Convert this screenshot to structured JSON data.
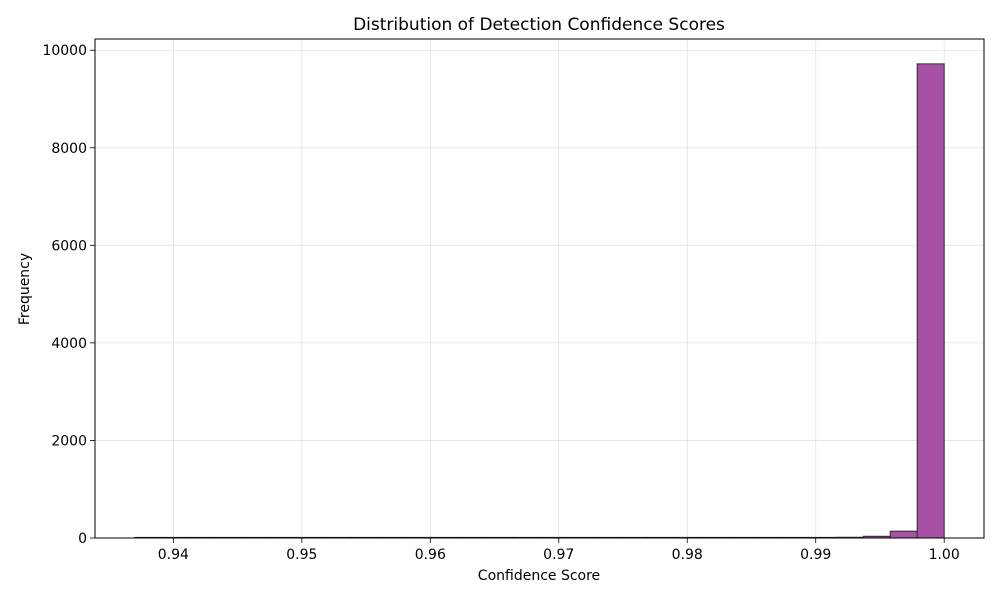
{
  "chart_data": {
    "type": "bar",
    "title": "Distribution of Detection Confidence Scores",
    "xlabel": "Confidence Score",
    "ylabel": "Frequency",
    "xlim": [
      0.9339,
      1.0031
    ],
    "ylim": [
      0,
      10230
    ],
    "xticks": [
      0.94,
      0.95,
      0.96,
      0.97,
      0.98,
      0.99,
      1.0
    ],
    "xtick_labels": [
      "0.94",
      "0.95",
      "0.96",
      "0.97",
      "0.98",
      "0.99",
      "1.00"
    ],
    "yticks": [
      0,
      2000,
      4000,
      6000,
      8000,
      10000
    ],
    "ytick_labels": [
      "0",
      "2000",
      "4000",
      "6000",
      "8000",
      "10000"
    ],
    "grid": true,
    "bar_color": "#a44ca4",
    "edge_color": "#2b2b2b",
    "bins": [
      {
        "x0": 0.937,
        "x1": 0.9391,
        "value": 1
      },
      {
        "x0": 0.9391,
        "x1": 0.9412,
        "value": 0
      },
      {
        "x0": 0.9412,
        "x1": 0.9433,
        "value": 0
      },
      {
        "x0": 0.9433,
        "x1": 0.9454,
        "value": 1
      },
      {
        "x0": 0.9454,
        "x1": 0.9475,
        "value": 0
      },
      {
        "x0": 0.9475,
        "x1": 0.9496,
        "value": 0
      },
      {
        "x0": 0.9496,
        "x1": 0.9517,
        "value": 0
      },
      {
        "x0": 0.9517,
        "x1": 0.9538,
        "value": 0
      },
      {
        "x0": 0.9538,
        "x1": 0.9559,
        "value": 0
      },
      {
        "x0": 0.9559,
        "x1": 0.958,
        "value": 0
      },
      {
        "x0": 0.958,
        "x1": 0.9601,
        "value": 0
      },
      {
        "x0": 0.9601,
        "x1": 0.9622,
        "value": 0
      },
      {
        "x0": 0.9622,
        "x1": 0.9643,
        "value": 0
      },
      {
        "x0": 0.9643,
        "x1": 0.9664,
        "value": 0
      },
      {
        "x0": 0.9664,
        "x1": 0.9685,
        "value": 0
      },
      {
        "x0": 0.9685,
        "x1": 0.9706,
        "value": 0
      },
      {
        "x0": 0.9706,
        "x1": 0.9727,
        "value": 0
      },
      {
        "x0": 0.9727,
        "x1": 0.9748,
        "value": 0
      },
      {
        "x0": 0.9748,
        "x1": 0.9769,
        "value": 0
      },
      {
        "x0": 0.9769,
        "x1": 0.979,
        "value": 0
      },
      {
        "x0": 0.979,
        "x1": 0.9811,
        "value": 0
      },
      {
        "x0": 0.9811,
        "x1": 0.9832,
        "value": 0
      },
      {
        "x0": 0.9832,
        "x1": 0.9853,
        "value": 0
      },
      {
        "x0": 0.9853,
        "x1": 0.9874,
        "value": 0
      },
      {
        "x0": 0.9874,
        "x1": 0.9895,
        "value": 0
      },
      {
        "x0": 0.9895,
        "x1": 0.9916,
        "value": 2
      },
      {
        "x0": 0.9916,
        "x1": 0.9937,
        "value": 15
      },
      {
        "x0": 0.9937,
        "x1": 0.9958,
        "value": 35
      },
      {
        "x0": 0.9958,
        "x1": 0.9979,
        "value": 140
      },
      {
        "x0": 0.9979,
        "x1": 1.0,
        "value": 9720
      }
    ]
  }
}
